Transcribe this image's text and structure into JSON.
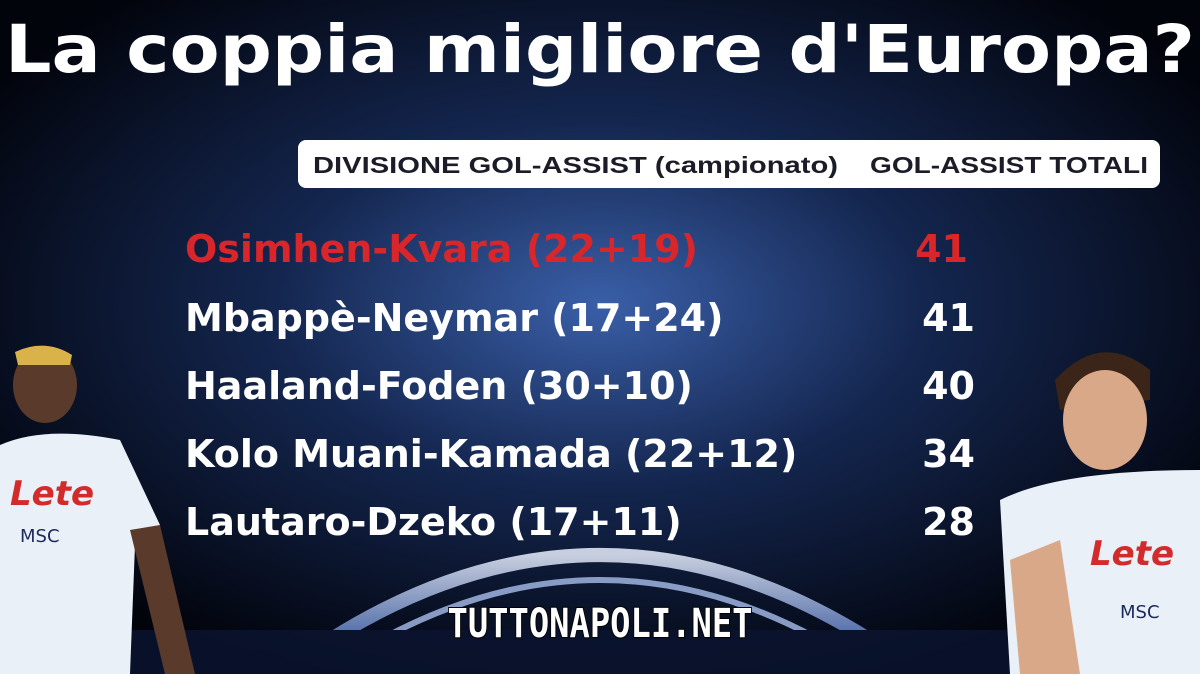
{
  "header": {
    "title": "La coppia migliore d'Europa?",
    "column_pair": "DIVISIONE GOL-ASSIST (campionato)",
    "column_total": "GOL-ASSIST TOTALI"
  },
  "table": {
    "rows": [
      [
        "Osimhen-Kvara (22+19)",
        41
      ],
      [
        "Mbappè-Neymar (17+24)",
        41
      ],
      [
        "Haaland-Foden (30+10)",
        40
      ],
      [
        "Kolo Muani-Kamada (22+12)",
        34
      ],
      [
        "Lautaro-Dzeko (17+11)",
        28
      ]
    ]
  },
  "watermark": "TUTTONAPOLI.NET"
}
